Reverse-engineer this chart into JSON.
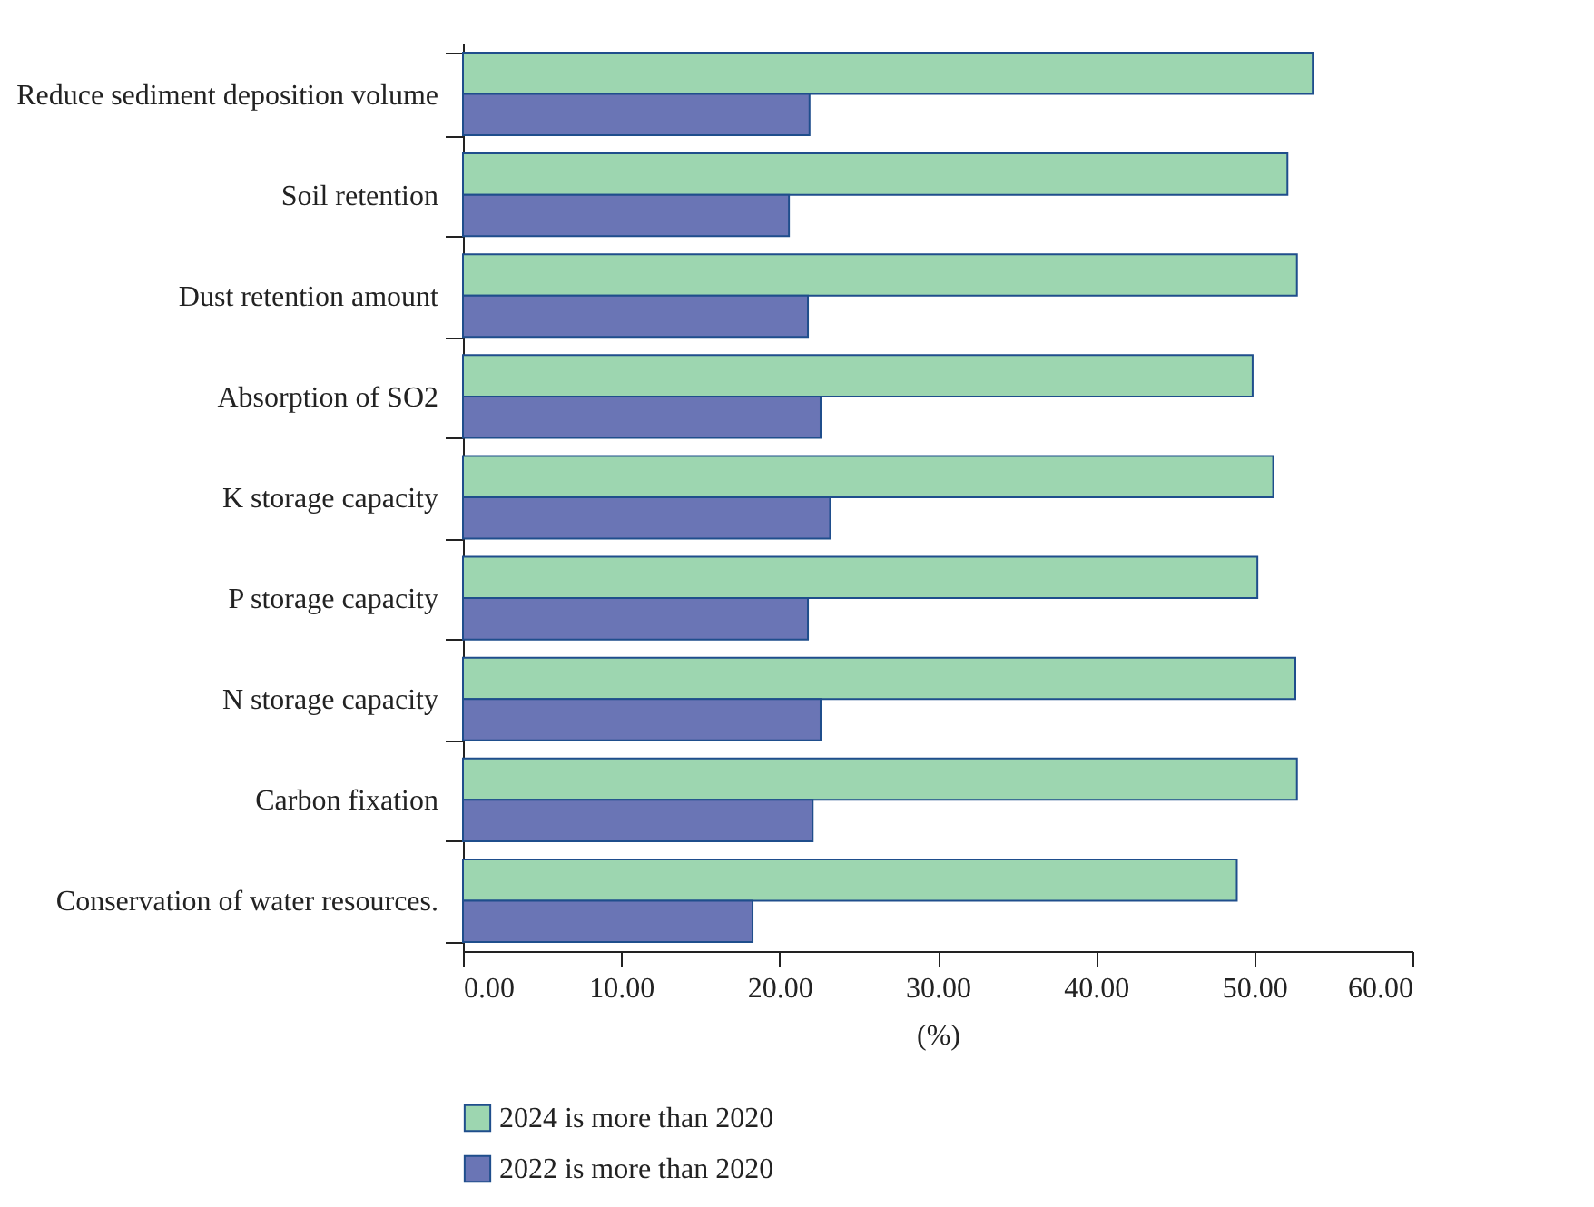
{
  "chart_data": {
    "type": "bar",
    "orientation": "horizontal",
    "xlabel": "(%)",
    "categories": [
      "Reduce sediment deposition volume",
      "Soil retention",
      "Dust retention amount",
      "Absorption of SO2",
      "K storage capacity",
      "P storage capacity",
      "N storage capacity",
      "Carbon fixation",
      "Conservation of water resources."
    ],
    "series": [
      {
        "name": "2024 is more than 2020",
        "color": "#9dd6b0",
        "values": [
          53.7,
          52.1,
          52.7,
          49.9,
          51.2,
          50.2,
          52.6,
          52.7,
          48.9
        ]
      },
      {
        "name": "2022 is more than 2020",
        "color": "#6a75b5",
        "values": [
          21.9,
          20.6,
          21.8,
          22.6,
          23.2,
          21.8,
          22.6,
          22.1,
          18.3
        ]
      }
    ],
    "xlim": [
      0,
      60
    ],
    "xticks": [
      {
        "value": 0,
        "label": "0.00"
      },
      {
        "value": 10,
        "label": "10.00"
      },
      {
        "value": 20,
        "label": "20.00"
      },
      {
        "value": 30,
        "label": "30.00"
      },
      {
        "value": 40,
        "label": "40.00"
      },
      {
        "value": 50,
        "label": "50.00"
      },
      {
        "value": 60,
        "label": "60.00"
      }
    ],
    "grid": false,
    "legend": "bottom left"
  }
}
